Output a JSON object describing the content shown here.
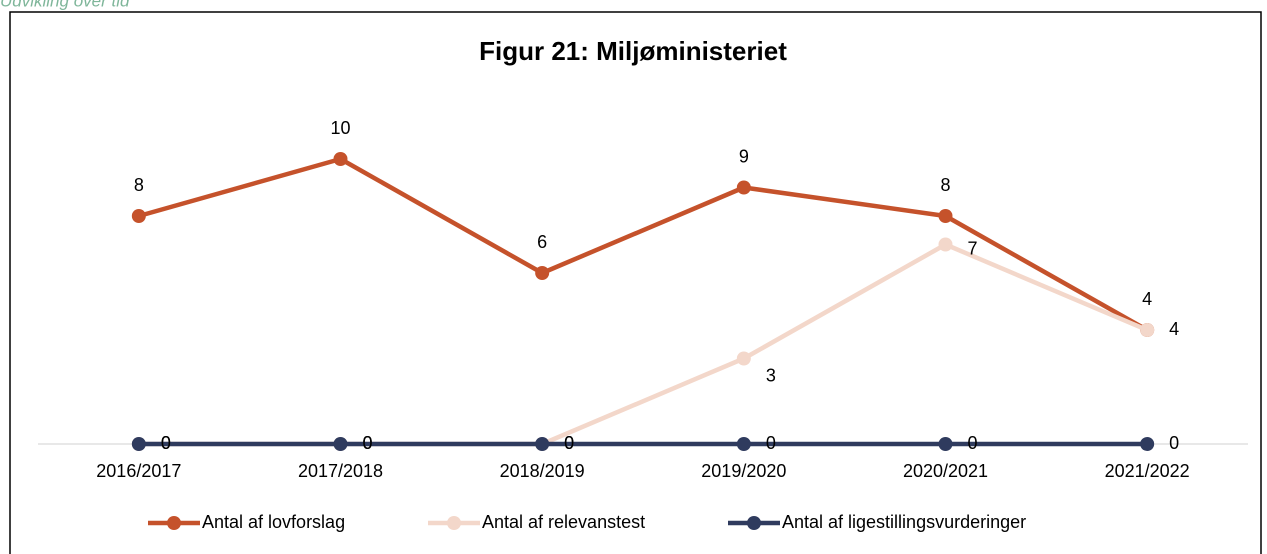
{
  "chart_data": {
    "type": "line",
    "caption": "Udvikling over tid",
    "title": "Figur 21: Miljøministeriet",
    "categories": [
      "2016/2017",
      "2017/2018",
      "2018/2019",
      "2019/2020",
      "2020/2021",
      "2021/2022"
    ],
    "series": [
      {
        "name": "Antal af lovforslag",
        "color": "#c5522b",
        "values": [
          8,
          10,
          6,
          9,
          8,
          4
        ]
      },
      {
        "name": "Antal af relevanstest",
        "color": "#f3d7ca",
        "values": [
          0,
          0,
          0,
          3,
          7,
          4
        ]
      },
      {
        "name": "Antal af ligestillingsvurderinger",
        "color": "#2f3b5e",
        "values": [
          0,
          0,
          0,
          0,
          0,
          0
        ]
      }
    ],
    "ylim": [
      0,
      10
    ],
    "legend": "bottom"
  }
}
